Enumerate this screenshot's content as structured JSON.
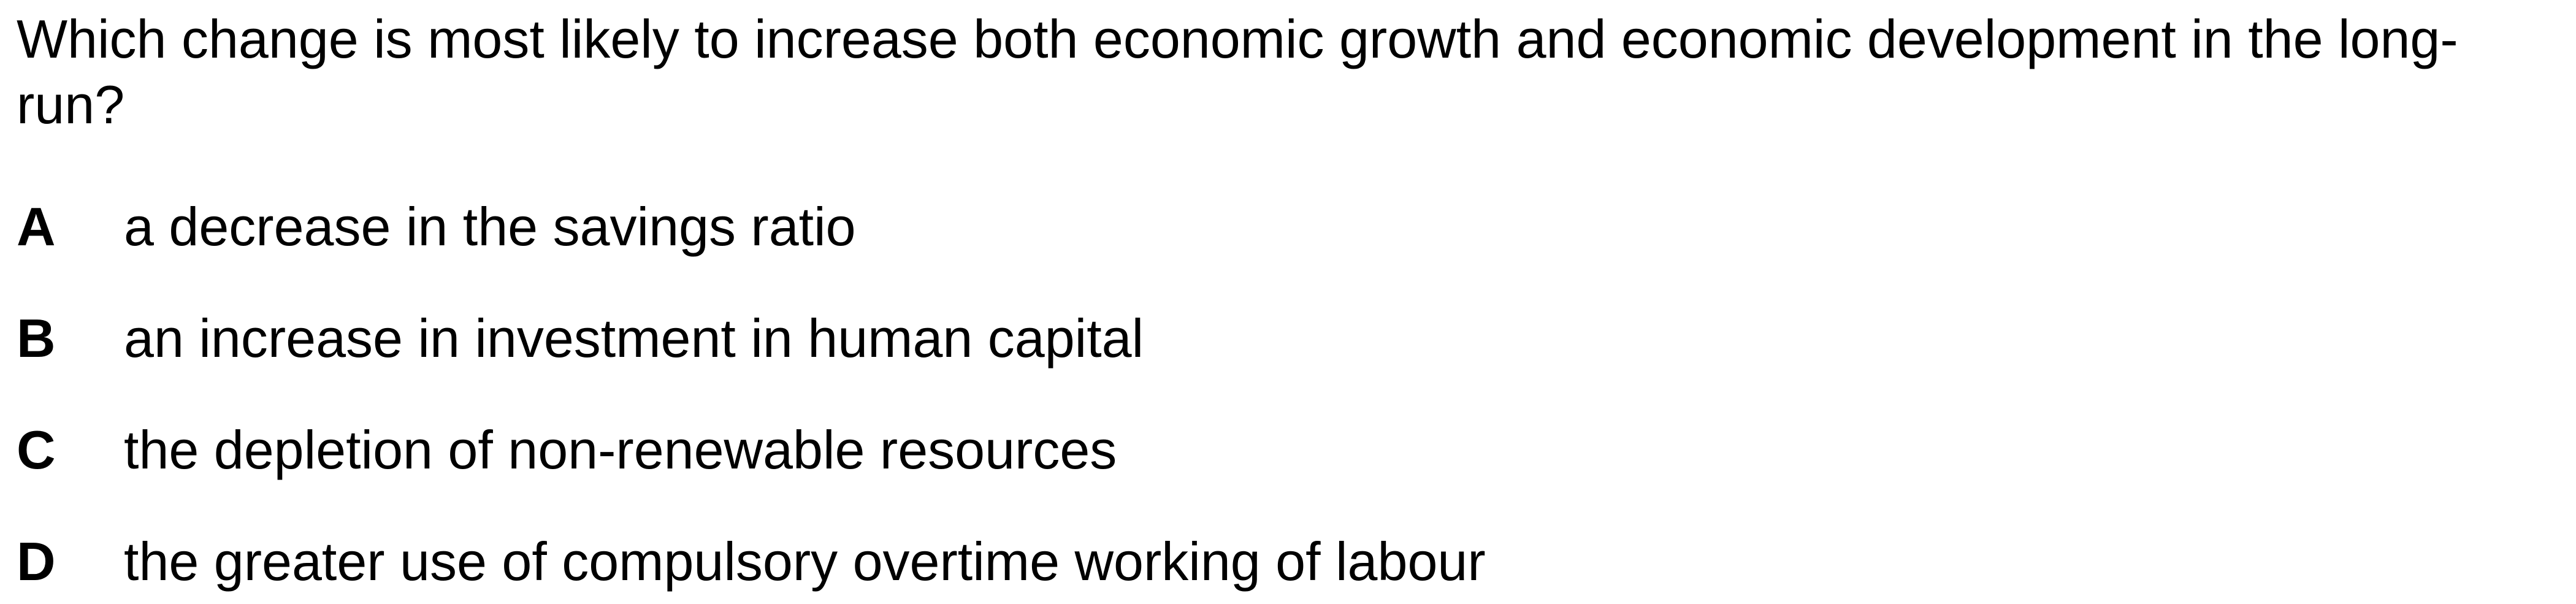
{
  "question": {
    "text": "Which change is most likely to increase both economic growth and economic development in the long-run?"
  },
  "options": [
    {
      "letter": "A",
      "text": "a decrease in the savings ratio"
    },
    {
      "letter": "B",
      "text": "an increase in investment in human capital"
    },
    {
      "letter": "C",
      "text": "the depletion of non-renewable resources"
    },
    {
      "letter": "D",
      "text": "the greater use of compulsory overtime working of labour"
    }
  ]
}
